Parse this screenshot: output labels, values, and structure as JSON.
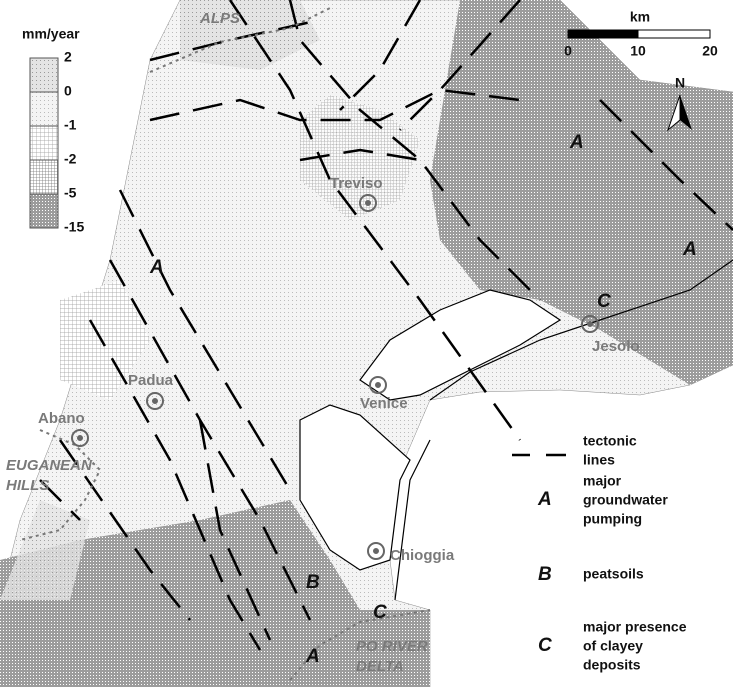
{
  "legend": {
    "unit": "mm/year",
    "classes": [
      "2",
      "0",
      "-1",
      "-2",
      "-5",
      "-15"
    ]
  },
  "scale_bar": {
    "unit": "km",
    "ticks": [
      "0",
      "10",
      "20"
    ]
  },
  "north": "N",
  "places": [
    {
      "lines": [
        "ALPS"
      ]
    },
    {
      "lines": [
        "Treviso"
      ]
    },
    {
      "lines": [
        "Jesolo"
      ]
    },
    {
      "lines": [
        "Venice"
      ]
    },
    {
      "lines": [
        "Padua"
      ]
    },
    {
      "lines": [
        "Abano"
      ]
    },
    {
      "lines": [
        "EUGANEAN",
        "HILLS"
      ]
    },
    {
      "lines": [
        "Chioggia"
      ]
    },
    {
      "lines": [
        "PO RIVER",
        "DELTA"
      ]
    }
  ],
  "zone_letters": [
    "A",
    "A",
    "A",
    "C",
    "B",
    "C",
    "A"
  ],
  "key": [
    {
      "lines": [
        "tectonic",
        "lines"
      ]
    },
    {
      "symbol": "A",
      "lines": [
        "major",
        "groundwater",
        "pumping"
      ]
    },
    {
      "symbol": "B",
      "lines": [
        "peatsoils"
      ]
    },
    {
      "symbol": "C",
      "lines": [
        "major presence",
        "of clayey",
        "deposits"
      ]
    }
  ]
}
